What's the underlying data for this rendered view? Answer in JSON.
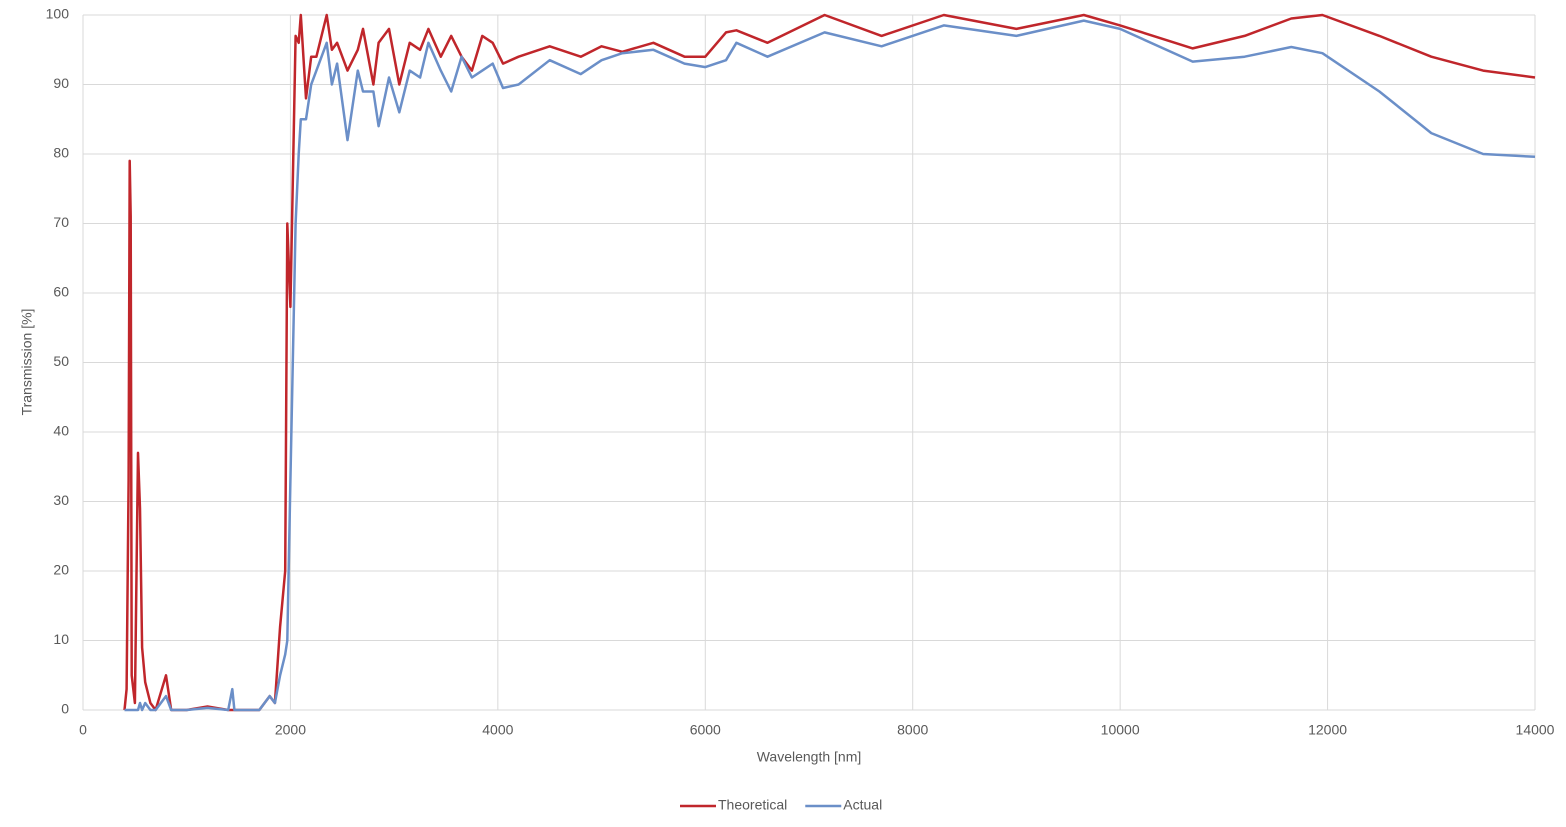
{
  "chart_data": {
    "type": "line",
    "x_label": "Wavelength [nm]",
    "y_label": "Transmission [%]",
    "x": [
      400,
      420,
      440,
      450,
      460,
      470,
      500,
      530,
      550,
      570,
      600,
      650,
      700,
      800,
      850,
      1000,
      1200,
      1400,
      1440,
      1460,
      1700,
      1800,
      1850,
      1900,
      1950,
      1970,
      2000,
      2050,
      2080,
      2100,
      2150,
      2200,
      2250,
      2350,
      2400,
      2450,
      2550,
      2650,
      2700,
      2800,
      2850,
      2950,
      3050,
      3150,
      3250,
      3330,
      3450,
      3550,
      3650,
      3750,
      3850,
      3950,
      4050,
      4200,
      4500,
      4800,
      5000,
      5200,
      5500,
      5800,
      6000,
      6200,
      6300,
      6600,
      7150,
      7700,
      8300,
      9000,
      9650,
      10000,
      10700,
      11200,
      11650,
      11950,
      12500,
      13000,
      13500,
      14000
    ],
    "series": [
      {
        "name": "Theoretical",
        "color": "#c0262b",
        "values": [
          0,
          3,
          33,
          79,
          71,
          5,
          1,
          37,
          29,
          9,
          4,
          1,
          0,
          5,
          0,
          0,
          0.5,
          0,
          0,
          0,
          0,
          2,
          1,
          12,
          20,
          70,
          58,
          97,
          96,
          100,
          88,
          94,
          94,
          100,
          95,
          96,
          92,
          95,
          98,
          90,
          96,
          98,
          90,
          96,
          95,
          98,
          94,
          97,
          94,
          92,
          97,
          96,
          93,
          94,
          95.5,
          94,
          95.5,
          94.7,
          96,
          94,
          94,
          97.5,
          97.8,
          96,
          100,
          97,
          100,
          98,
          100,
          98.5,
          95.2,
          97,
          99.5,
          100,
          97,
          94,
          92,
          91
        ]
      },
      {
        "name": "Actual",
        "color": "#6b8fc8",
        "values": [
          0,
          0,
          0,
          0,
          0,
          0,
          0,
          0,
          1,
          0,
          1,
          0,
          0,
          2,
          0,
          0,
          0.3,
          0,
          3,
          0,
          0,
          2,
          1,
          5,
          8,
          10,
          33,
          70,
          80,
          85,
          85,
          90,
          92,
          96,
          90,
          93,
          82,
          92,
          89,
          89,
          84,
          91,
          86,
          92,
          91,
          96,
          92,
          89,
          94,
          91,
          92,
          93,
          89.5,
          90,
          93.5,
          91.5,
          93.5,
          94.5,
          95,
          93,
          92.5,
          93.5,
          96,
          94,
          97.5,
          95.5,
          98.5,
          97,
          99.2,
          98,
          93.3,
          94,
          95.4,
          94.5,
          89,
          83,
          80,
          79.6
        ]
      }
    ],
    "xlim": [
      0,
      14000
    ],
    "xticks": [
      0,
      2000,
      4000,
      6000,
      8000,
      10000,
      12000,
      14000
    ],
    "ylim": [
      0,
      100
    ],
    "yticks": [
      0,
      10,
      20,
      30,
      40,
      50,
      60,
      70,
      80,
      90,
      100
    ],
    "grid": true,
    "legend": "bottom"
  }
}
